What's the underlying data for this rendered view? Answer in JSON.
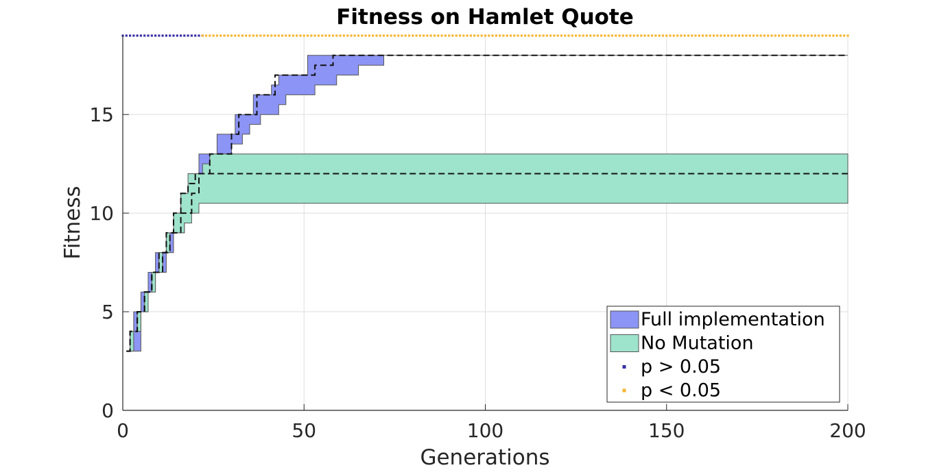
{
  "chart_data": {
    "type": "area",
    "title": "Fitness on Hamlet Quote",
    "xlabel": "Generations",
    "ylabel": "Fitness",
    "xlim": [
      0,
      200
    ],
    "ylim": [
      0,
      19
    ],
    "xticks": [
      0,
      50,
      100,
      150,
      200
    ],
    "yticks": [
      0,
      5,
      10,
      15
    ],
    "grid": true,
    "legend_position": "bottom-right",
    "series": [
      {
        "name": "Full implementation",
        "color": "#8c94f5",
        "median_x": [
          1,
          2,
          4,
          6,
          8,
          11,
          13,
          16,
          19,
          21,
          24,
          27,
          30,
          32,
          35,
          37,
          40,
          42,
          45,
          50,
          53,
          55,
          58,
          70,
          200
        ],
        "median_y": [
          3,
          4,
          5,
          6,
          7,
          8,
          9,
          10,
          11,
          12,
          13,
          13,
          14,
          15,
          15,
          16,
          16,
          17,
          17,
          17,
          17.5,
          17.5,
          18,
          18,
          18
        ],
        "upper_x": [
          1,
          2,
          3,
          5,
          7,
          9,
          12,
          14,
          17,
          19,
          21,
          24,
          26,
          29,
          31,
          34,
          36,
          39,
          41,
          43,
          46,
          49,
          51,
          54,
          56,
          200
        ],
        "upper_y": [
          3,
          4,
          5,
          6,
          7,
          8,
          9,
          10,
          11,
          12,
          13,
          13,
          14,
          14,
          15,
          15,
          16,
          16,
          16.5,
          17,
          17,
          17,
          18,
          18,
          18,
          18
        ],
        "lower_x": [
          1,
          3,
          5,
          7,
          9,
          12,
          14,
          17,
          20,
          22,
          25,
          28,
          30,
          33,
          35,
          38,
          40,
          43,
          45,
          51,
          53,
          56,
          59,
          61,
          65,
          69,
          72,
          75,
          200
        ],
        "lower_y": [
          3,
          3,
          5,
          6,
          7,
          8,
          9,
          10,
          11,
          12,
          12.5,
          13,
          13.5,
          14,
          14.5,
          15,
          15,
          15.5,
          16,
          16,
          16.5,
          16.5,
          17,
          17,
          17.5,
          17.5,
          18,
          18,
          18
        ]
      },
      {
        "name": "No Mutation",
        "color": "#9ee3cb",
        "median_x": [
          1,
          2,
          4,
          6,
          8,
          10,
          12,
          14,
          16,
          18,
          20,
          22,
          200
        ],
        "median_y": [
          3,
          4,
          5,
          6,
          7,
          8,
          9,
          10,
          11,
          11.5,
          12,
          12,
          12
        ],
        "upper_x": [
          1,
          2,
          4,
          6,
          8,
          10,
          12,
          14,
          16,
          18,
          20,
          22,
          24,
          200
        ],
        "upper_y": [
          3,
          4,
          5,
          6,
          7,
          8,
          9,
          10,
          11,
          12,
          12,
          12.5,
          13,
          13
        ],
        "lower_x": [
          1,
          3,
          5,
          7,
          9,
          11,
          13,
          15,
          17,
          19,
          21,
          200
        ],
        "lower_y": [
          3,
          4,
          5,
          6,
          7,
          8,
          9,
          9,
          9.5,
          10,
          10.5,
          10.5
        ]
      }
    ],
    "significance": {
      "y": 19,
      "markers": [
        {
          "name": "p > 0.05",
          "color": "#3a2fa6",
          "from": 0,
          "to": 22
        },
        {
          "name": "p < 0.05",
          "color": "#f7b531",
          "from": 22,
          "to": 200
        }
      ]
    }
  }
}
